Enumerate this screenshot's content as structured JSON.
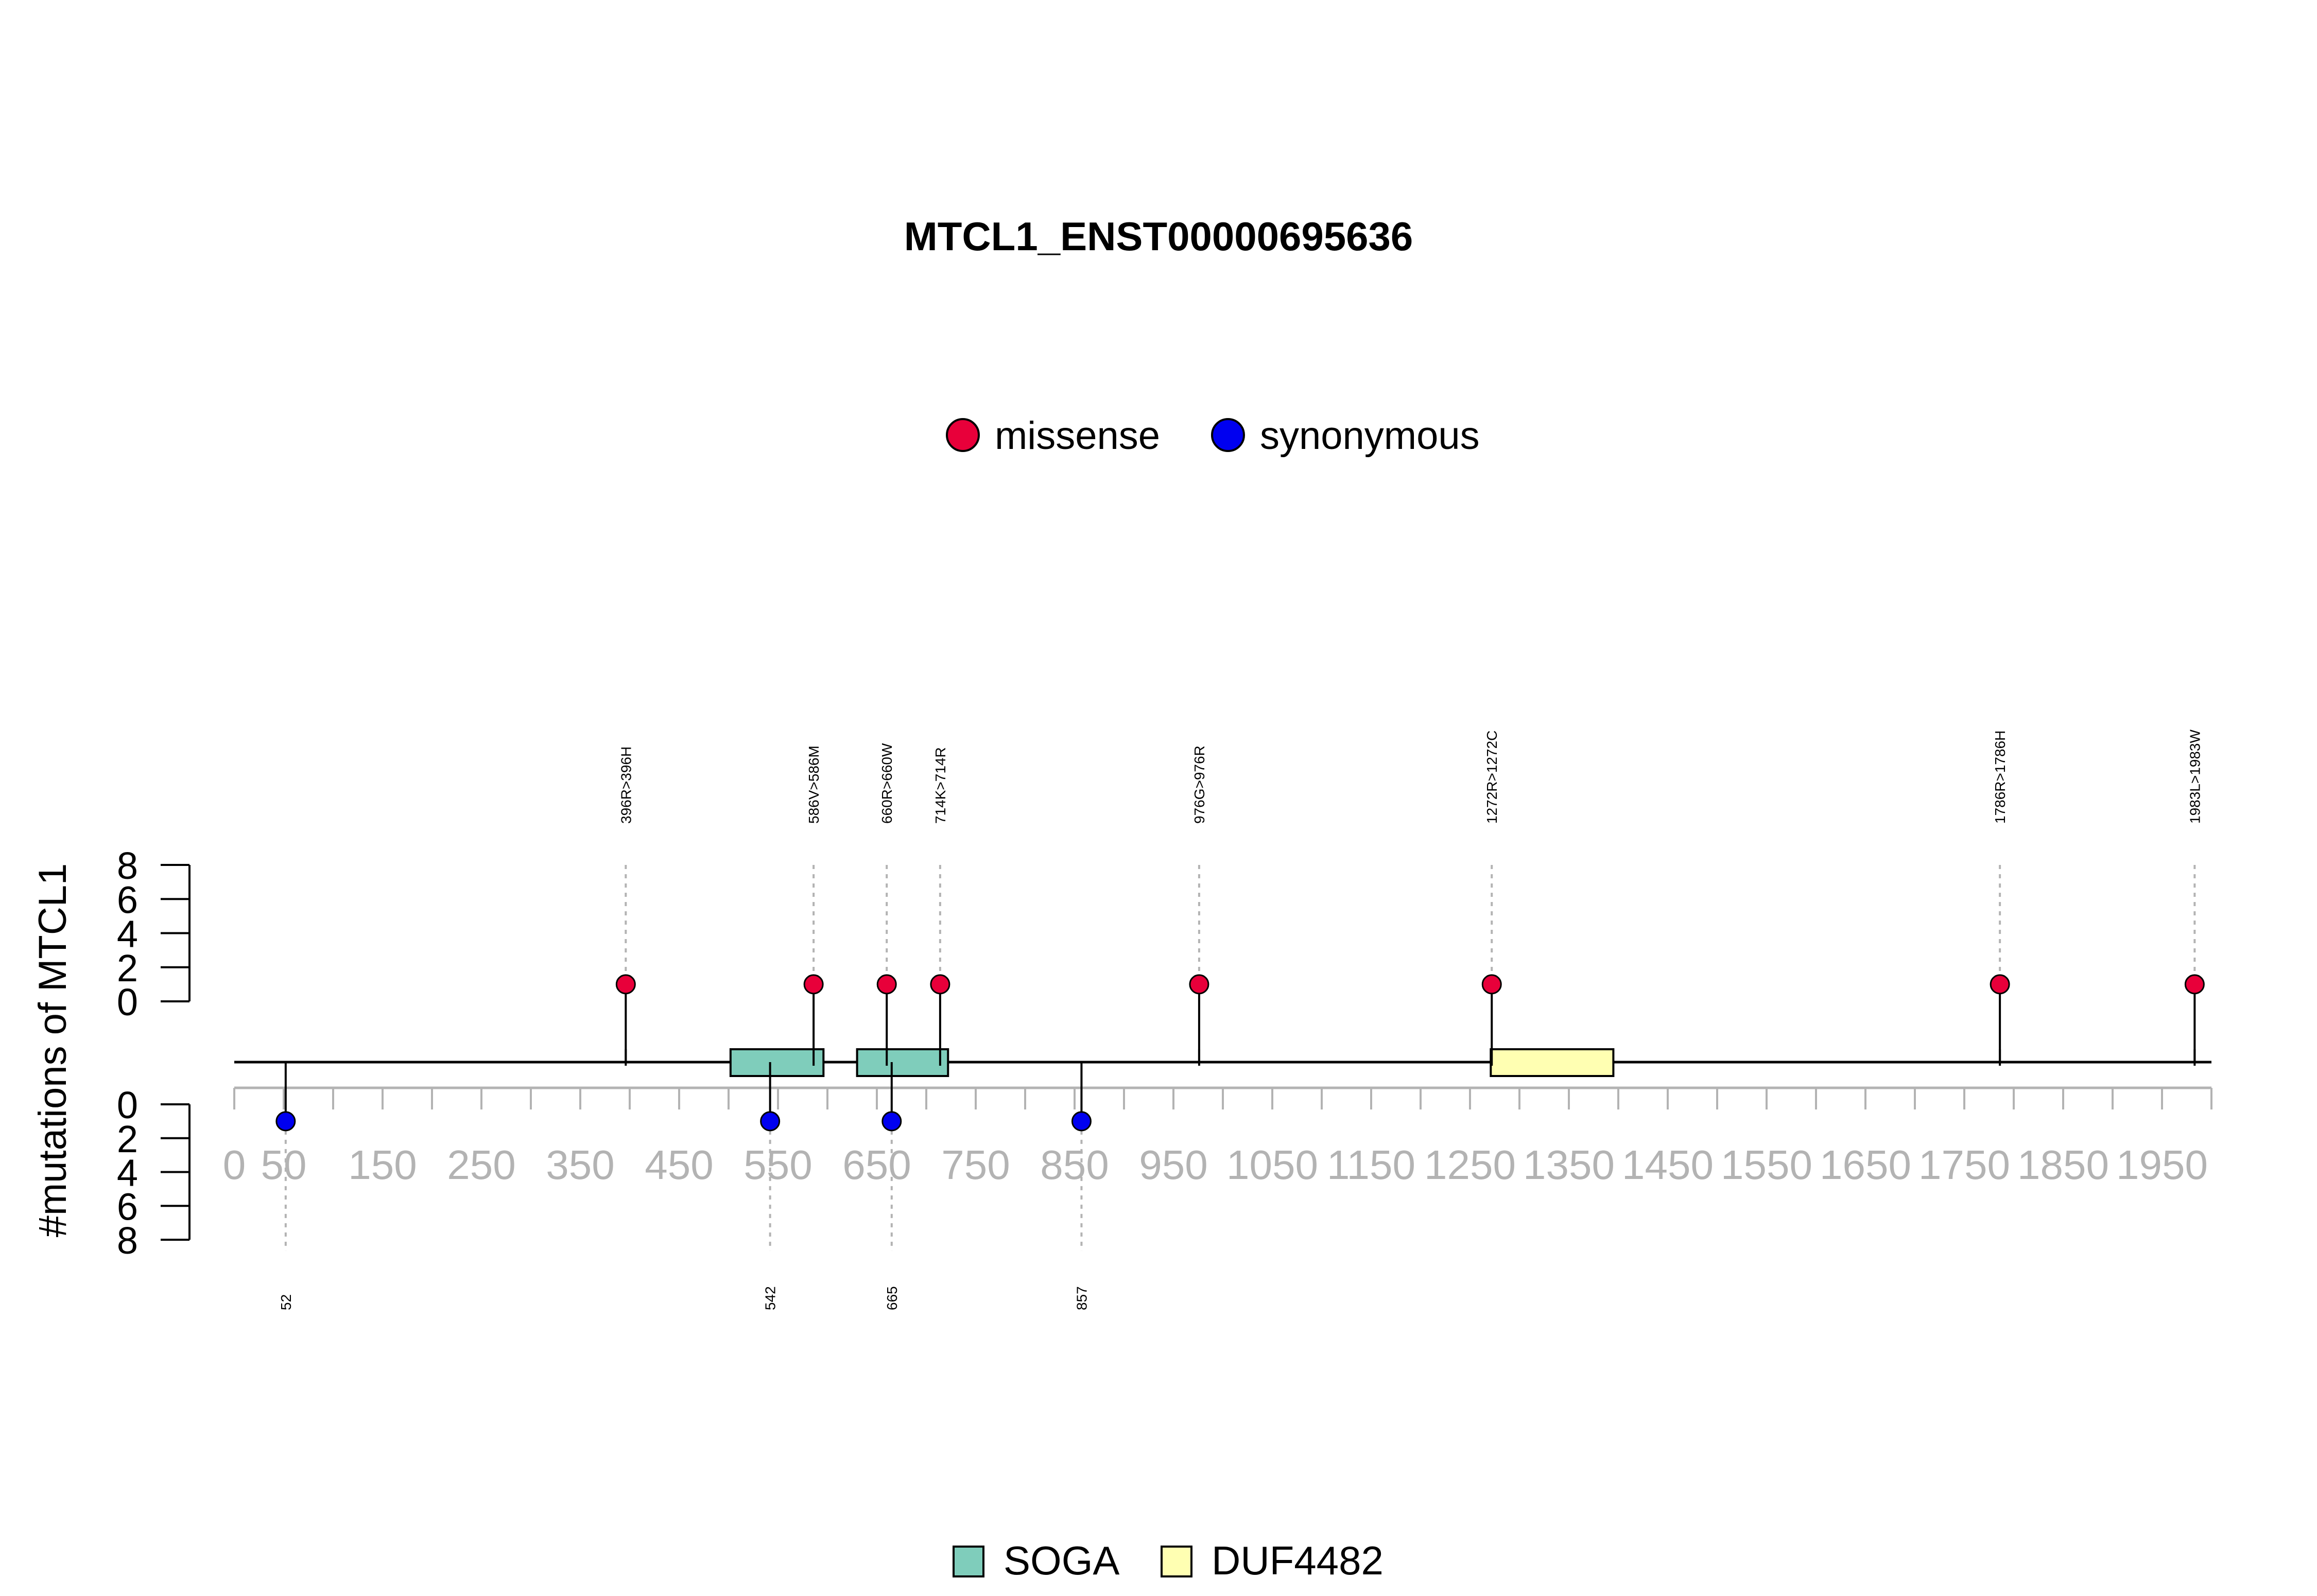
{
  "chart_data": {
    "type": "lollipop",
    "title": "MTCL1_ENST00000695636",
    "ylabel": "#mutations of MTCL1",
    "x_range": [
      0,
      2000
    ],
    "x_ticks": [
      0,
      50,
      150,
      250,
      350,
      450,
      550,
      650,
      750,
      850,
      950,
      1050,
      1150,
      1250,
      1350,
      1450,
      1550,
      1650,
      1750,
      1850,
      1950
    ],
    "y_ticks_upper": [
      0,
      2,
      4,
      6,
      8
    ],
    "y_ticks_lower": [
      0,
      2,
      4,
      6,
      8
    ],
    "y_range": [
      0,
      8
    ],
    "mutation_legend": [
      {
        "name": "missense",
        "color": "#E8003A"
      },
      {
        "name": "synonymous",
        "color": "#0000F0"
      }
    ],
    "missense": [
      {
        "position": 396,
        "label": "396R>396H",
        "count": 1
      },
      {
        "position": 586,
        "label": "586V>586M",
        "count": 1
      },
      {
        "position": 660,
        "label": "660R>660W",
        "count": 1
      },
      {
        "position": 714,
        "label": "714K>714R",
        "count": 1
      },
      {
        "position": 976,
        "label": "976G>976R",
        "count": 1
      },
      {
        "position": 1272,
        "label": "1272R>1272C",
        "count": 1
      },
      {
        "position": 1786,
        "label": "1786R>1786H",
        "count": 1
      },
      {
        "position": 1983,
        "label": "1983L>1983W",
        "count": 1
      }
    ],
    "synonymous": [
      {
        "position": 52,
        "label": "52",
        "count": 1
      },
      {
        "position": 542,
        "label": "542",
        "count": 1
      },
      {
        "position": 665,
        "label": "665",
        "count": 1
      },
      {
        "position": 857,
        "label": "857",
        "count": 1
      }
    ],
    "domains": [
      {
        "name": "SOGA",
        "start": 502,
        "end": 596,
        "color": "#7FCDBB"
      },
      {
        "name": "SOGA",
        "start": 630,
        "end": 722,
        "color": "#7FCDBB"
      },
      {
        "name": "DUF4482",
        "start": 1271,
        "end": 1395,
        "color": "#FFFFB2"
      }
    ],
    "domain_legend": [
      {
        "name": "SOGA",
        "color": "#7FCDBB"
      },
      {
        "name": "DUF4482",
        "color": "#FFFFB2"
      }
    ]
  }
}
